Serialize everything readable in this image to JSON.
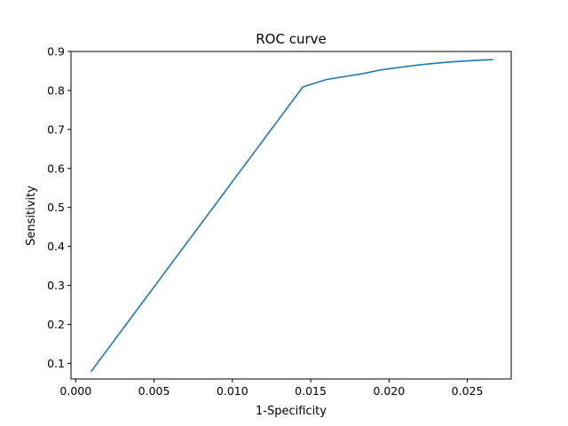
{
  "chart_data": {
    "type": "line",
    "title": "ROC curve",
    "xlabel": "1-Specificity",
    "ylabel": "Sensitivity",
    "xlim": [
      -0.0003,
      0.0278
    ],
    "ylim": [
      0.06,
      0.9
    ],
    "xticks": [
      0.0,
      0.005,
      0.01,
      0.015,
      0.02,
      0.025
    ],
    "xtick_labels": [
      "0.000",
      "0.005",
      "0.010",
      "0.015",
      "0.020",
      "0.025"
    ],
    "yticks": [
      0.1,
      0.2,
      0.3,
      0.4,
      0.5,
      0.6,
      0.7,
      0.8,
      0.9
    ],
    "ytick_labels": [
      "0.1",
      "0.2",
      "0.3",
      "0.4",
      "0.5",
      "0.6",
      "0.7",
      "0.8",
      "0.9"
    ],
    "grid": false,
    "series": [
      {
        "color": "#1f77b4",
        "x": [
          0.001,
          0.0145,
          0.016,
          0.0172,
          0.0183,
          0.0195,
          0.021,
          0.022,
          0.023,
          0.0242,
          0.0255,
          0.0266
        ],
        "y": [
          0.08,
          0.809,
          0.828,
          0.836,
          0.843,
          0.853,
          0.861,
          0.866,
          0.87,
          0.874,
          0.877,
          0.879
        ]
      }
    ]
  }
}
